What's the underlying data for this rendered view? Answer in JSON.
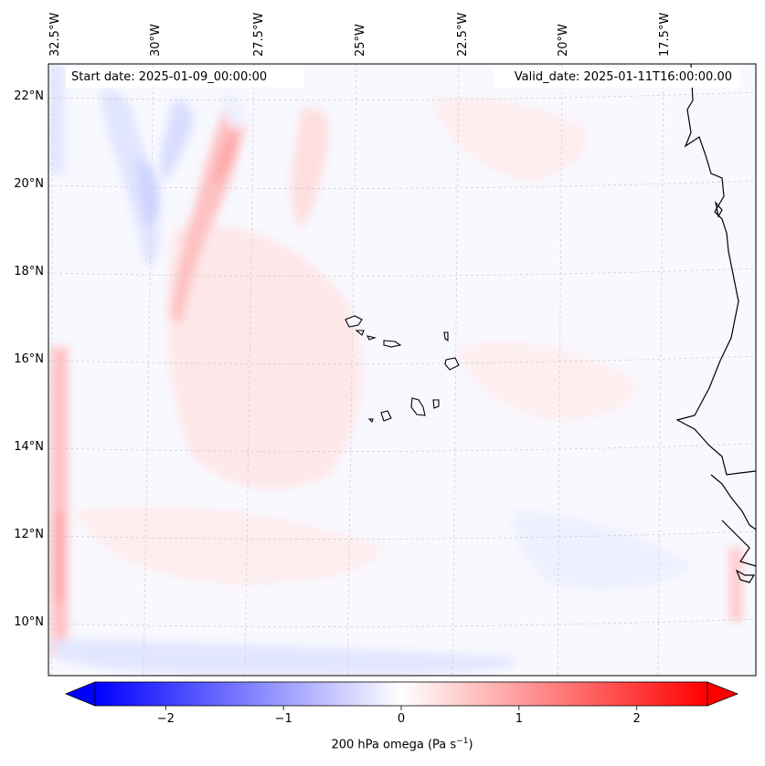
{
  "map": {
    "start_date_text": "Start date: 2025-01-09_00:00:00",
    "valid_date_text": "Valid_date: 2025-01-11T16:00:00.00",
    "lon_labels": [
      "32.5°W",
      "30°W",
      "27.5°W",
      "25°W",
      "22.5°W",
      "20°W",
      "17.5°W"
    ],
    "lat_labels": [
      "22°N",
      "20°N",
      "18°N",
      "16°N",
      "14°N",
      "12°N",
      "10°N"
    ],
    "extent": {
      "lon_min": -32.7,
      "lon_max": -16.1,
      "lat_min": 8.9,
      "lat_max": 22.7
    },
    "background_color": "#f8f8ff"
  },
  "colorbar": {
    "variable_label": "200 hPa omega (Pa s",
    "units_superscript": "−1",
    "label_close": ")",
    "ticks": [
      "−2",
      "−1",
      "0",
      "1",
      "2"
    ],
    "tick_values": [
      -2,
      -1,
      0,
      1,
      2
    ],
    "range": [
      -2.6,
      2.6
    ],
    "colormap": "bwr",
    "extend": "both",
    "min_color": "#0000ff",
    "mid_color": "#ffffff",
    "max_color": "#ff0000"
  }
}
